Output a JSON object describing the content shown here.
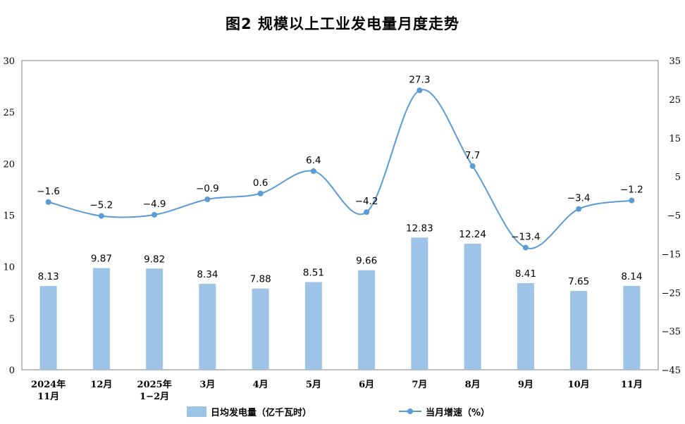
{
  "chart_data": {
    "type": "bar+line",
    "title": "图2 规模以上工业发电量月度走势",
    "categories": [
      [
        "2024年",
        "11月"
      ],
      [
        "12月"
      ],
      [
        "2025年",
        "1−2月"
      ],
      [
        "3月"
      ],
      [
        "4月"
      ],
      [
        "5月"
      ],
      [
        "6月"
      ],
      [
        "7月"
      ],
      [
        "8月"
      ],
      [
        "9月"
      ],
      [
        "10月"
      ],
      [
        "11月"
      ]
    ],
    "series": [
      {
        "name": "日均发电量（亿千瓦时）",
        "type": "bar",
        "axis": "left",
        "color": "#9dc3e6",
        "values": [
          8.13,
          9.87,
          9.82,
          8.34,
          7.88,
          8.51,
          9.66,
          12.83,
          12.24,
          8.41,
          7.65,
          8.14
        ],
        "labels": [
          "8.13",
          "9.87",
          "9.82",
          "8.34",
          "7.88",
          "8.51",
          "9.66",
          "12.83",
          "12.24",
          "8.41",
          "7.65",
          "8.14"
        ]
      },
      {
        "name": "当月增速（%）",
        "type": "line",
        "axis": "right",
        "color": "#5b9bd5",
        "values": [
          -1.6,
          -5.2,
          -4.9,
          -0.9,
          0.6,
          6.4,
          -4.2,
          27.3,
          7.7,
          -13.4,
          -3.4,
          -1.2
        ],
        "labels": [
          "−1.6",
          "−5.2",
          "−4.9",
          "−0.9",
          "0.6",
          "6.4",
          "−4.2",
          "27.3",
          "7.7",
          "−13.4",
          "−3.4",
          "−1.2"
        ]
      }
    ],
    "y_left": {
      "min": 0,
      "max": 30,
      "ticks": [
        "0",
        "5",
        "10",
        "15",
        "20",
        "25",
        "30"
      ]
    },
    "y_right": {
      "min": -45,
      "max": 35,
      "ticks": [
        "−45",
        "−35",
        "−25",
        "−15",
        "−5",
        "5",
        "15",
        "25",
        "35"
      ]
    },
    "legend": "bottom"
  }
}
